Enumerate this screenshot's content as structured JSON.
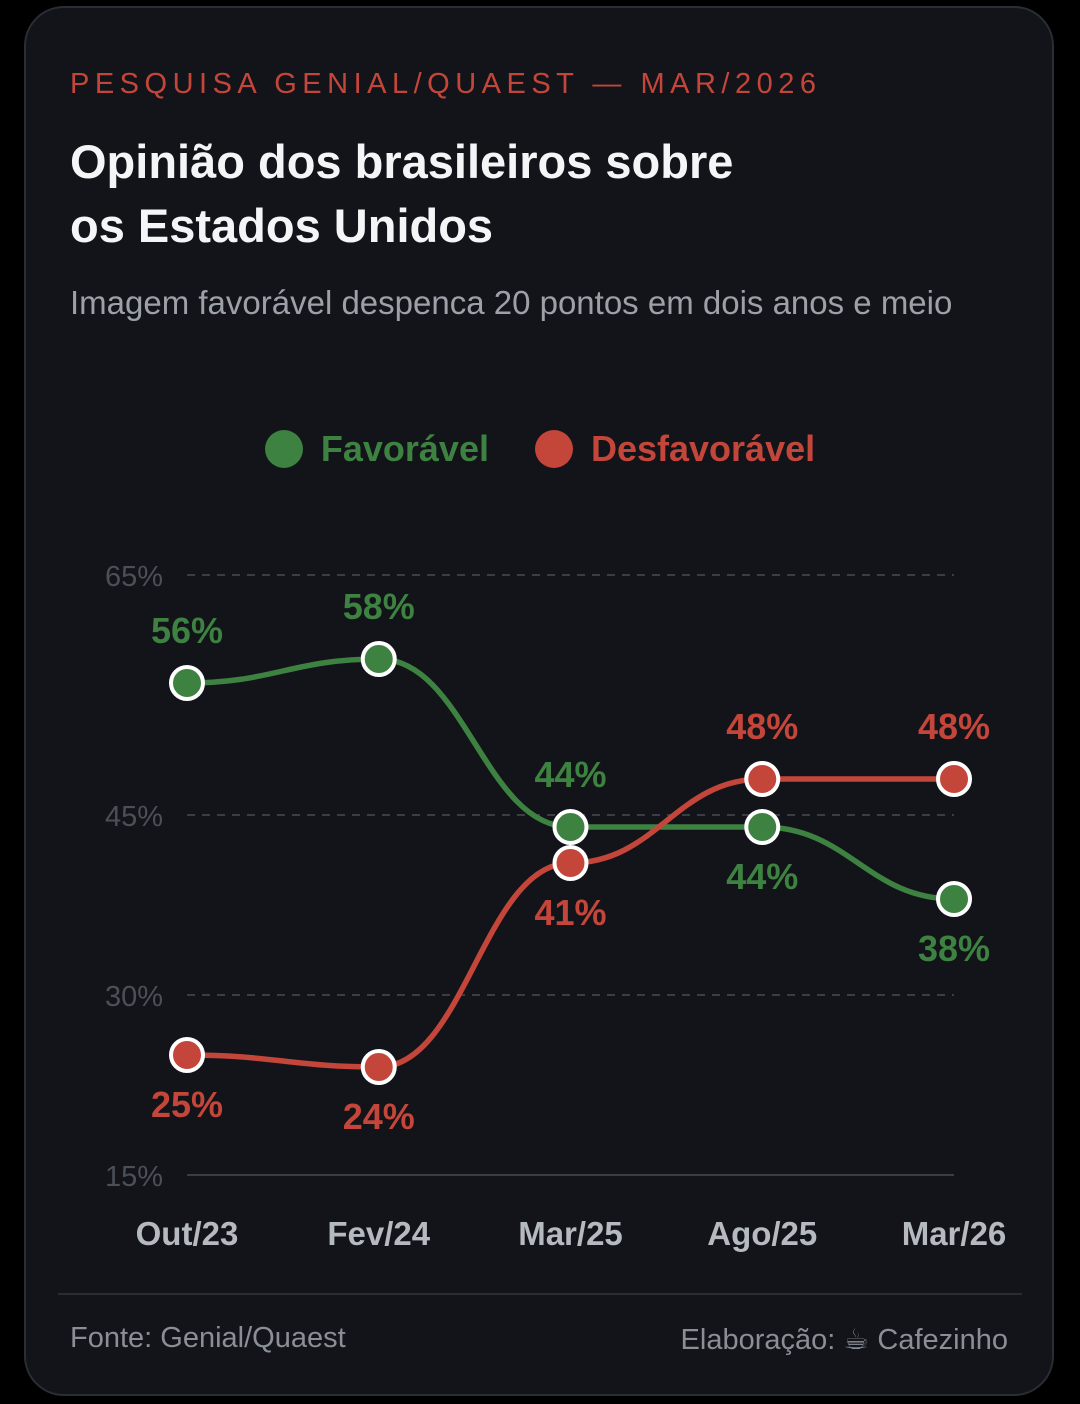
{
  "header": {
    "kicker": "PESQUISA GENIAL/QUAEST — MAR/2026",
    "title": "Opinião dos brasileiros sobre os Estados Unidos",
    "subtitle": "Imagem favorável despenca 20 pontos em dois anos e meio"
  },
  "colors": {
    "favoravel": "#3d8240",
    "desfavoravel": "#c4463a",
    "tick_label": "#4b4f57",
    "category_label": "#b5b9c0",
    "grid": "#3a3d44"
  },
  "chart_data": {
    "type": "line",
    "categories": [
      "Out/23",
      "Fev/24",
      "Mar/25",
      "Ago/25",
      "Mar/26"
    ],
    "series": [
      {
        "name": "Favorável",
        "values": [
          56,
          58,
          44,
          44,
          38
        ],
        "labels": [
          "56%",
          "58%",
          "44%",
          "44%",
          "38%"
        ]
      },
      {
        "name": "Desfavorável",
        "values": [
          25,
          24,
          41,
          48,
          48
        ],
        "labels": [
          "25%",
          "24%",
          "41%",
          "48%",
          "48%"
        ]
      }
    ],
    "ylim": [
      15,
      65
    ],
    "yticks": [
      15,
      30,
      45,
      65
    ],
    "ytick_labels": [
      "15%",
      "30%",
      "45%",
      "65%"
    ],
    "legend_position": "top-center",
    "grid": true
  },
  "footer": {
    "source": "Fonte: Genial/Quaest",
    "credit": "Elaboração: ☕ Cafezinho"
  }
}
